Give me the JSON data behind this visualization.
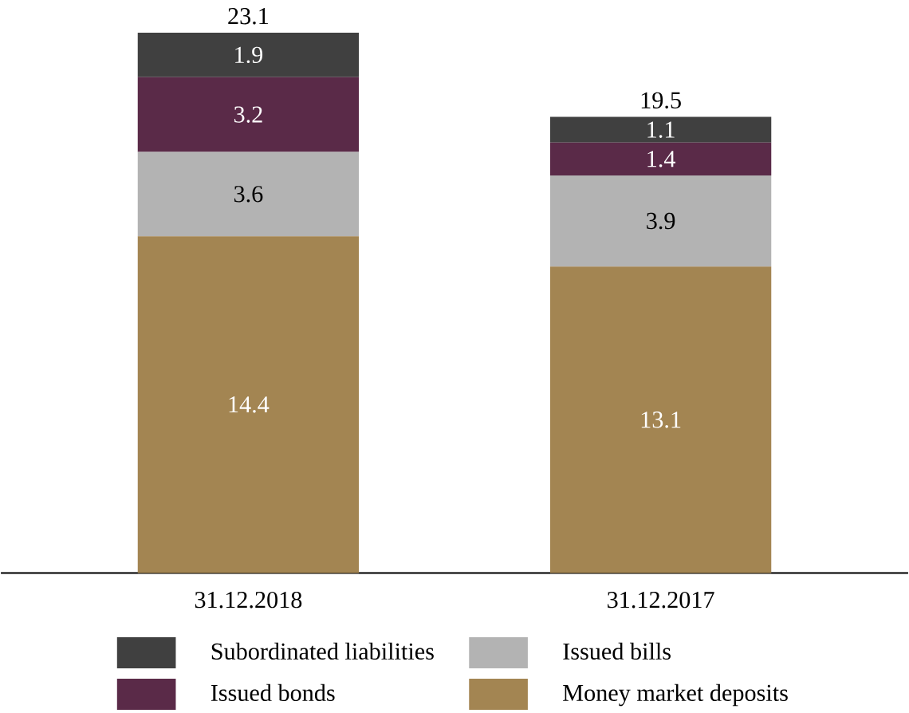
{
  "chart_data": {
    "type": "bar",
    "stacked": true,
    "categories": [
      "31.12.2018",
      "31.12.2017"
    ],
    "series": [
      {
        "name": "Money market deposits",
        "color": "#a38552",
        "values": [
          14.4,
          13.1
        ]
      },
      {
        "name": "Issued bills",
        "color": "#b3b3b3",
        "values": [
          3.6,
          3.9
        ]
      },
      {
        "name": "Issued bonds",
        "color": "#5a2a48",
        "values": [
          3.2,
          1.4
        ]
      },
      {
        "name": "Subordinated liabilities",
        "color": "#404040",
        "values": [
          1.9,
          1.1
        ]
      }
    ],
    "totals": [
      "23.1",
      "19.5"
    ],
    "data_labels": true,
    "legend": "bottom"
  }
}
